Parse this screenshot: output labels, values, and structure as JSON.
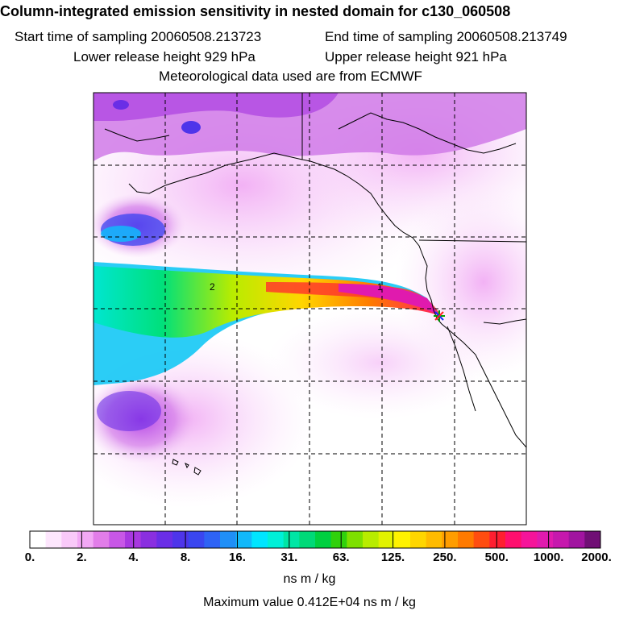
{
  "title": "Column-integrated emission sensitivity in nested domain for c130_060508",
  "start_label": "Start time of sampling 20060508.213723",
  "end_label": "End time of sampling 20060508.213749",
  "lower_label": "Lower release height  929 hPa",
  "upper_label": "Upper release height  921 hPa",
  "met_label": "Meteorological data used are from ECMWF",
  "map": {
    "contour_labels": [
      "2",
      "1"
    ],
    "release_marker": "release-point-star"
  },
  "colorbar": {
    "tick_labels": [
      "0.",
      "2.",
      "4.",
      "8.",
      "16.",
      "31.",
      "63.",
      "125.",
      "250.",
      "500.",
      "1000.",
      "2000."
    ],
    "colors": [
      "#ffffff",
      "#fde6fd",
      "#f9c9f9",
      "#f2a8f5",
      "#e27de9",
      "#c857e6",
      "#a838e0",
      "#8a2fe0",
      "#6a2ee6",
      "#4e35ea",
      "#3a46f0",
      "#2e63f5",
      "#1f8ff7",
      "#12b8fa",
      "#00e5ff",
      "#00f0d8",
      "#00e6a5",
      "#00d978",
      "#00d040",
      "#30d10c",
      "#7ee000",
      "#b8ec00",
      "#e2f200",
      "#fff200",
      "#ffd600",
      "#ffbb00",
      "#ff9d00",
      "#ff7a00",
      "#ff4d10",
      "#ff1f30",
      "#ff0f6e",
      "#f5149a",
      "#e01aae",
      "#c618ad",
      "#a114a0",
      "#700f75"
    ],
    "units": "ns m / kg"
  },
  "max_value_label": "Maximum value  0.412E+04 ns m / kg"
}
